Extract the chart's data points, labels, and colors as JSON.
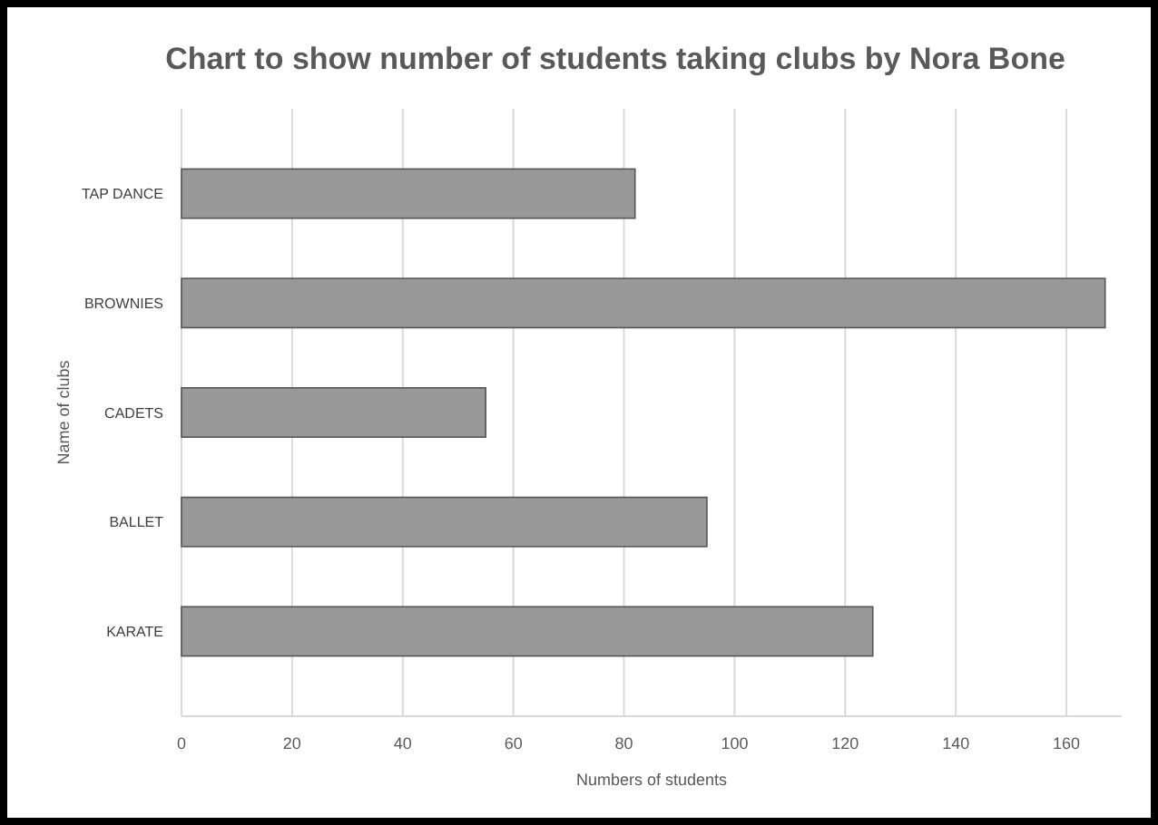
{
  "chart_data": {
    "type": "bar",
    "orientation": "horizontal",
    "title": "Chart to show number of students taking clubs by Nora Bone",
    "xlabel": "Numbers of students",
    "ylabel": "Name of clubs",
    "categories": [
      "TAP DANCE",
      "BROWNIES",
      "CADETS",
      "BALLET",
      "KARATE"
    ],
    "values": [
      82,
      167,
      55,
      95,
      125
    ],
    "color": "#999999",
    "xlim": [
      0,
      170
    ],
    "xticks": [
      0,
      20,
      40,
      60,
      80,
      100,
      120,
      140,
      160
    ],
    "grid": "x"
  }
}
